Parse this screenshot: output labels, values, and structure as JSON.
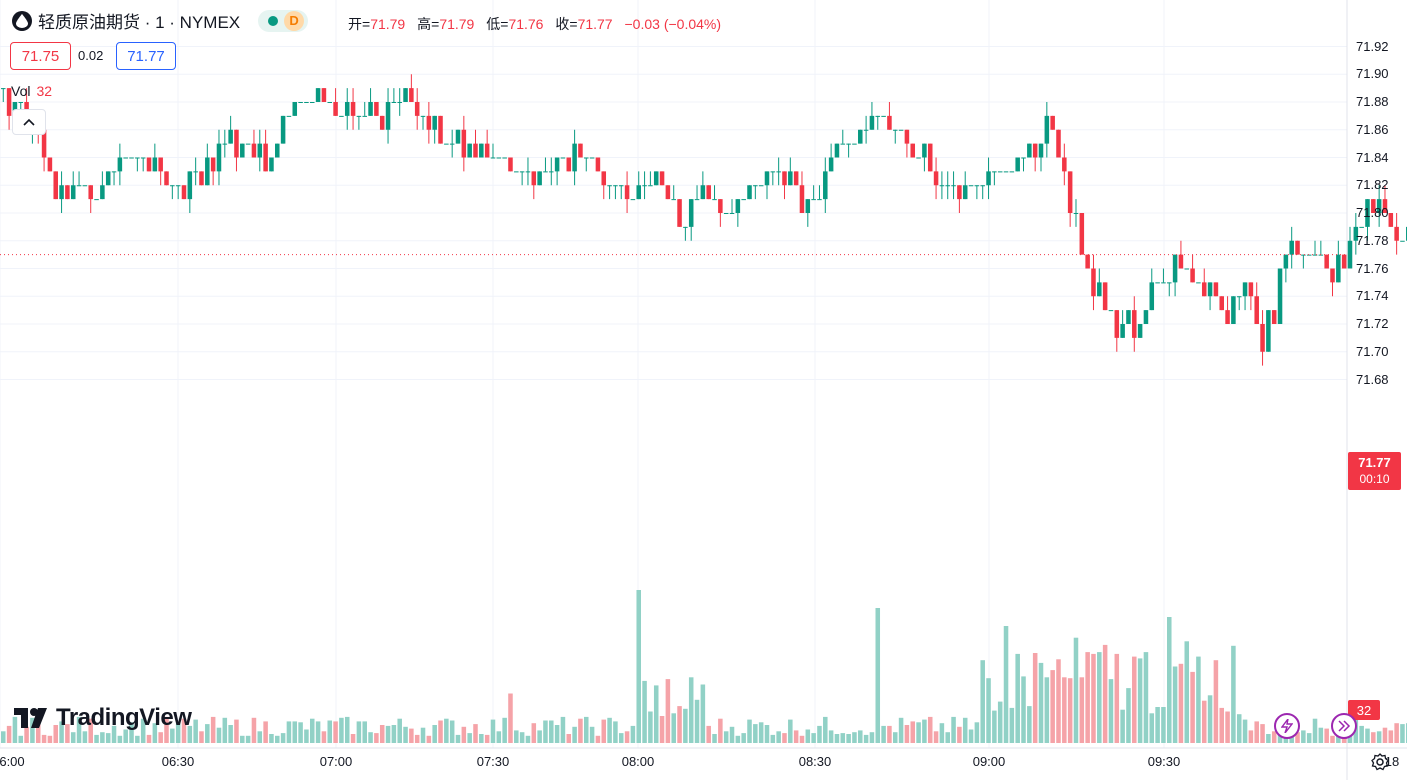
{
  "header": {
    "symbol_title": "轻质原油期货 · 1 · NYMEX",
    "market_status_icon": "market-open-dot",
    "delay_badge": "D",
    "ohlc": [
      {
        "label": "开=",
        "value": "71.79"
      },
      {
        "label": "高=",
        "value": "71.79"
      },
      {
        "label": "低=",
        "value": "71.76"
      },
      {
        "label": "收=",
        "value": "71.77"
      },
      {
        "label": "",
        "value": "−0.03 (−0.04%)"
      }
    ],
    "bid": "71.75",
    "spread": "0.02",
    "ask": "71.77"
  },
  "volume_legend": {
    "label": "Vol",
    "value": "32"
  },
  "price_tag": {
    "price": "71.77",
    "countdown": "00:10"
  },
  "volume_tag": "32",
  "logo_text": "TradingView",
  "colors": {
    "up": "#089981",
    "down": "#f23645",
    "up_vol": "#91d1c6",
    "down_vol": "#f5a3a8",
    "accent": "#2962ff"
  },
  "chart_data": {
    "type": "candlestick",
    "y_ticks": [
      "71.92",
      "71.90",
      "71.88",
      "71.86",
      "71.84",
      "71.82",
      "71.80",
      "71.78",
      "71.76",
      "71.74",
      "71.72",
      "71.70",
      "71.68"
    ],
    "x_ticks": [
      "6:00",
      "06:30",
      "07:00",
      "07:30",
      "08:00",
      "08:30",
      "09:00",
      "09:30",
      "18"
    ],
    "ylim": [
      71.672,
      71.935
    ],
    "grid": true,
    "last_price": 71.77,
    "segments": [
      {
        "t": 0,
        "price": 71.89
      },
      {
        "t": 3,
        "price": 71.87
      },
      {
        "t": 6,
        "price": 71.85
      },
      {
        "t": 10,
        "price": 71.81
      },
      {
        "t": 16,
        "price": 71.82
      },
      {
        "t": 22,
        "price": 71.84
      },
      {
        "t": 30,
        "price": 71.82
      },
      {
        "t": 38,
        "price": 71.85
      },
      {
        "t": 46,
        "price": 71.84
      },
      {
        "t": 50,
        "price": 71.88
      },
      {
        "t": 62,
        "price": 71.87
      },
      {
        "t": 70,
        "price": 71.88
      },
      {
        "t": 76,
        "price": 71.85
      },
      {
        "t": 84,
        "price": 71.84
      },
      {
        "t": 90,
        "price": 71.83
      },
      {
        "t": 98,
        "price": 71.84
      },
      {
        "t": 106,
        "price": 71.82
      },
      {
        "t": 112,
        "price": 71.83
      },
      {
        "t": 116,
        "price": 71.79
      },
      {
        "t": 120,
        "price": 71.82
      },
      {
        "t": 124,
        "price": 71.8
      },
      {
        "t": 132,
        "price": 71.83
      },
      {
        "t": 138,
        "price": 71.81
      },
      {
        "t": 146,
        "price": 71.86
      },
      {
        "t": 152,
        "price": 71.87
      },
      {
        "t": 156,
        "price": 71.84
      },
      {
        "t": 164,
        "price": 71.82
      },
      {
        "t": 172,
        "price": 71.83
      },
      {
        "t": 176,
        "price": 71.84
      },
      {
        "t": 180,
        "price": 71.86
      },
      {
        "t": 183,
        "price": 71.8
      },
      {
        "t": 186,
        "price": 71.76
      },
      {
        "t": 190,
        "price": 71.73
      },
      {
        "t": 194,
        "price": 71.71
      },
      {
        "t": 198,
        "price": 71.75
      },
      {
        "t": 202,
        "price": 71.77
      },
      {
        "t": 206,
        "price": 71.74
      },
      {
        "t": 210,
        "price": 71.73
      },
      {
        "t": 214,
        "price": 71.75
      },
      {
        "t": 216,
        "price": 71.7
      },
      {
        "t": 218,
        "price": 71.73
      },
      {
        "t": 220,
        "price": 71.78
      },
      {
        "t": 226,
        "price": 71.77
      },
      {
        "t": 228,
        "price": 71.75
      },
      {
        "t": 232,
        "price": 71.79
      },
      {
        "t": 236,
        "price": 71.8
      },
      {
        "t": 240,
        "price": 71.78
      },
      {
        "t": 244,
        "price": 71.81
      },
      {
        "t": 246,
        "price": 71.79
      },
      {
        "t": 247,
        "price": 71.77
      }
    ],
    "volume_ylim": [
      0,
      200
    ]
  }
}
